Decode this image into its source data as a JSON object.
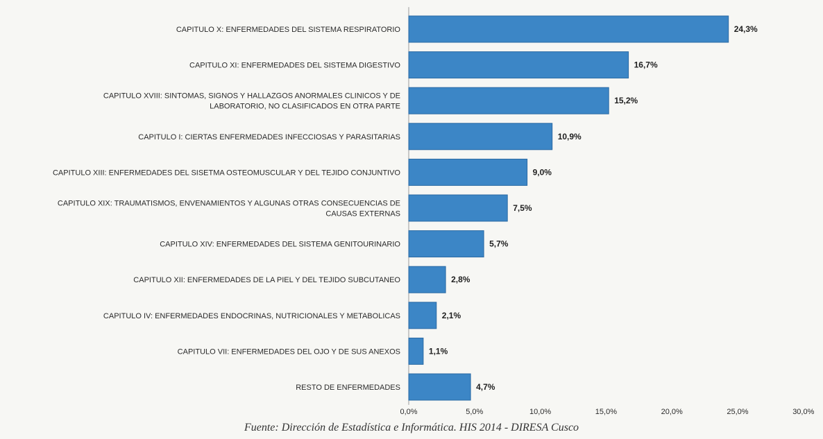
{
  "chart_data": {
    "type": "bar",
    "orientation": "horizontal",
    "categories": [
      "CAPITULO X: ENFERMEDADES DEL SISTEMA RESPIRATORIO",
      "CAPITULO XI: ENFERMEDADES DEL SISTEMA DIGESTIVO",
      "CAPITULO XVIII: SINTOMAS, SIGNOS Y HALLAZGOS ANORMALES CLINICOS Y DE LABORATORIO, NO CLASIFICADOS EN OTRA PARTE",
      "CAPITULO I: CIERTAS ENFERMEDADES INFECCIOSAS Y PARASITARIAS",
      "CAPITULO XIII: ENFERMEDADES DEL SISETMA OSTEOMUSCULAR Y DEL TEJIDO CONJUNTIVO",
      "CAPITULO XIX: TRAUMATISMOS, ENVENAMIENTOS Y ALGUNAS OTRAS CONSECUENCIAS DE CAUSAS EXTERNAS",
      "CAPITULO XIV: ENFERMEDADES DEL SISTEMA GENITOURINARIO",
      "CAPITULO XII: ENFERMEDADES DE LA PIEL Y DEL TEJIDO SUBCUTANEO",
      "CAPITULO IV: ENFERMEDADES ENDOCRINAS, NUTRICIONALES Y METABOLICAS",
      "CAPITULO VII: ENFERMEDADES DEL OJO Y DE SUS ANEXOS",
      "RESTO DE ENFERMEDADES"
    ],
    "category_lines": [
      [
        "CAPITULO X: ENFERMEDADES DEL SISTEMA RESPIRATORIO"
      ],
      [
        "CAPITULO XI: ENFERMEDADES DEL SISTEMA DIGESTIVO"
      ],
      [
        "CAPITULO XVIII: SINTOMAS, SIGNOS Y HALLAZGOS ANORMALES CLINICOS Y DE",
        "LABORATORIO, NO CLASIFICADOS EN OTRA PARTE"
      ],
      [
        "CAPITULO I: CIERTAS ENFERMEDADES INFECCIOSAS Y PARASITARIAS"
      ],
      [
        "CAPITULO XIII: ENFERMEDADES DEL SISETMA OSTEOMUSCULAR Y DEL TEJIDO CONJUNTIVO"
      ],
      [
        "CAPITULO XIX: TRAUMATISMOS, ENVENAMIENTOS Y ALGUNAS OTRAS CONSECUENCIAS DE",
        "CAUSAS EXTERNAS"
      ],
      [
        "CAPITULO XIV: ENFERMEDADES DEL SISTEMA GENITOURINARIO"
      ],
      [
        "CAPITULO XII: ENFERMEDADES DE LA PIEL Y DEL TEJIDO SUBCUTANEO"
      ],
      [
        "CAPITULO IV: ENFERMEDADES ENDOCRINAS, NUTRICIONALES Y METABOLICAS"
      ],
      [
        "CAPITULO VII: ENFERMEDADES DEL OJO Y DE SUS ANEXOS"
      ],
      [
        "RESTO DE ENFERMEDADES"
      ]
    ],
    "values": [
      24.3,
      16.7,
      15.2,
      10.9,
      9.0,
      7.5,
      5.7,
      2.8,
      2.1,
      1.1,
      4.7
    ],
    "data_labels": [
      "24,3%",
      "16,7%",
      "15,2%",
      "10,9%",
      "9,0%",
      "7,5%",
      "5,7%",
      "2,8%",
      "2,1%",
      "1,1%",
      "4,7%"
    ],
    "xlim": [
      0,
      30
    ],
    "xticks": [
      0,
      5,
      10,
      15,
      20,
      25,
      30
    ],
    "xtick_labels": [
      "0,0%",
      "5,0%",
      "10,0%",
      "15,0%",
      "20,0%",
      "25,0%",
      "30,0%"
    ],
    "grid": false,
    "legend": "none",
    "bar_color": "#3c86c6",
    "bar_edge_color": "#2a6aa3"
  },
  "source_note": "Fuente: Dirección de Estadística e Informática. HIS 2014 - DIRESA Cusco"
}
